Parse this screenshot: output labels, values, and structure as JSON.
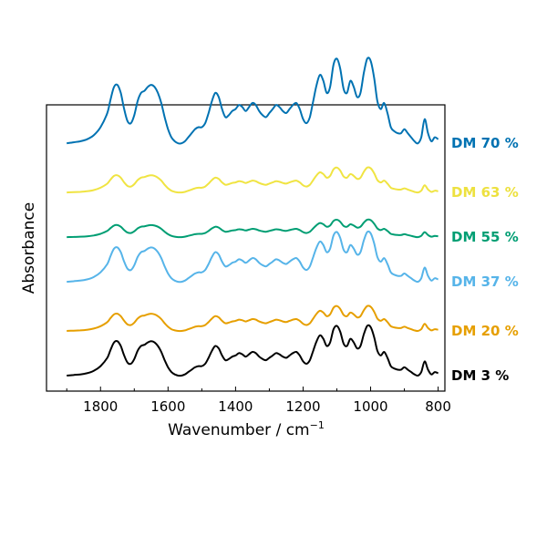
{
  "chart_data": {
    "type": "line",
    "title": "",
    "xlabel": "Wavenumber / cm",
    "xlabel_superscript": "−1",
    "ylabel": "Absorbance",
    "x_reversed": true,
    "xlim": [
      1960,
      780
    ],
    "x_ticks": [
      1800,
      1600,
      1400,
      1200,
      1000,
      800
    ],
    "grid": false,
    "legend": "labels at right end of each trace",
    "y_ticks_labeled": false,
    "series": [
      {
        "name": "DM 3 %",
        "color": "#000000",
        "offset": 0.0,
        "scale": 1.0
      },
      {
        "name": "DM 20 %",
        "color": "#E69F00",
        "offset": 1.0,
        "scale": 0.5
      },
      {
        "name": "DM 37 %",
        "color": "#56B4E9",
        "offset": 2.1,
        "scale": 1.0
      },
      {
        "name": "DM 55 %",
        "color": "#009E73",
        "offset": 3.1,
        "scale": 0.35
      },
      {
        "name": "DM 63 %",
        "color": "#F0E442",
        "offset": 4.1,
        "scale": 0.5
      },
      {
        "name": "DM 70 %",
        "color": "#0072B2",
        "offset": 5.2,
        "scale": 1.7
      }
    ],
    "base_spectrum": {
      "x": [
        1900,
        1880,
        1860,
        1840,
        1820,
        1800,
        1780,
        1770,
        1760,
        1750,
        1740,
        1730,
        1720,
        1710,
        1700,
        1690,
        1680,
        1670,
        1660,
        1650,
        1640,
        1630,
        1620,
        1610,
        1600,
        1590,
        1580,
        1570,
        1560,
        1550,
        1540,
        1530,
        1520,
        1510,
        1500,
        1490,
        1480,
        1470,
        1460,
        1450,
        1440,
        1430,
        1420,
        1410,
        1400,
        1390,
        1380,
        1370,
        1360,
        1350,
        1340,
        1330,
        1320,
        1310,
        1300,
        1290,
        1280,
        1270,
        1260,
        1250,
        1240,
        1230,
        1220,
        1210,
        1200,
        1190,
        1180,
        1170,
        1160,
        1150,
        1140,
        1130,
        1120,
        1110,
        1100,
        1090,
        1080,
        1070,
        1060,
        1050,
        1040,
        1030,
        1020,
        1010,
        1000,
        990,
        980,
        970,
        960,
        950,
        940,
        930,
        920,
        910,
        900,
        890,
        880,
        870,
        860,
        850,
        840,
        830,
        820,
        810,
        800
      ],
      "y": [
        0.05,
        0.055,
        0.06,
        0.07,
        0.09,
        0.13,
        0.2,
        0.27,
        0.33,
        0.34,
        0.3,
        0.22,
        0.16,
        0.15,
        0.19,
        0.26,
        0.3,
        0.31,
        0.33,
        0.34,
        0.33,
        0.3,
        0.25,
        0.18,
        0.12,
        0.08,
        0.06,
        0.05,
        0.05,
        0.06,
        0.08,
        0.1,
        0.12,
        0.13,
        0.13,
        0.15,
        0.2,
        0.26,
        0.3,
        0.28,
        0.22,
        0.18,
        0.19,
        0.21,
        0.22,
        0.24,
        0.23,
        0.21,
        0.23,
        0.25,
        0.24,
        0.21,
        0.19,
        0.18,
        0.2,
        0.22,
        0.24,
        0.23,
        0.21,
        0.2,
        0.22,
        0.24,
        0.25,
        0.22,
        0.17,
        0.15,
        0.18,
        0.26,
        0.34,
        0.39,
        0.36,
        0.3,
        0.33,
        0.44,
        0.47,
        0.42,
        0.32,
        0.3,
        0.36,
        0.33,
        0.28,
        0.3,
        0.4,
        0.47,
        0.46,
        0.38,
        0.26,
        0.22,
        0.25,
        0.2,
        0.13,
        0.11,
        0.1,
        0.1,
        0.12,
        0.1,
        0.08,
        0.06,
        0.05,
        0.08,
        0.17,
        0.1,
        0.06,
        0.08,
        0.07
      ]
    }
  }
}
